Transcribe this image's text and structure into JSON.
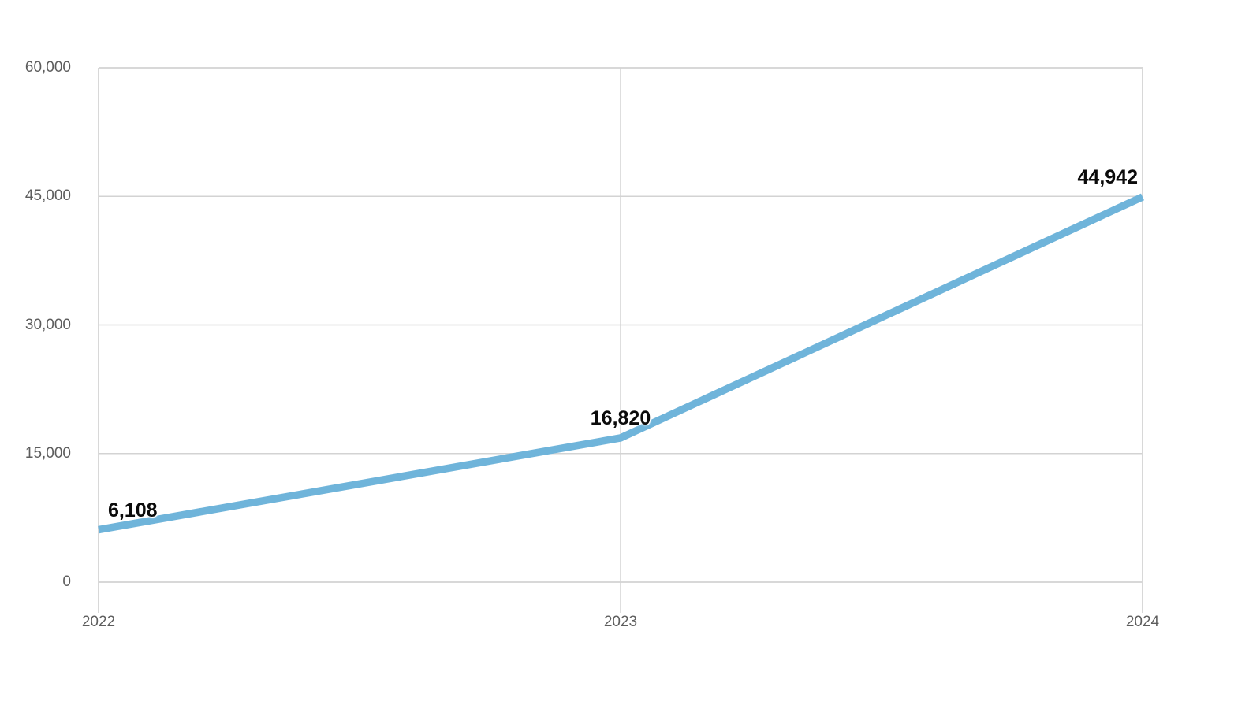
{
  "chart_data": {
    "type": "line",
    "title": "",
    "x": [
      "2022",
      "2023",
      "2024"
    ],
    "values": [
      6108,
      16820,
      44942
    ],
    "data_labels": [
      "6,108",
      "16,820",
      "44,942"
    ],
    "y_ticks": [
      {
        "value": 60000,
        "label": "60,000"
      },
      {
        "value": 45000,
        "label": "45,000"
      },
      {
        "value": 30000,
        "label": "30,000"
      },
      {
        "value": 15000,
        "label": "15,000"
      },
      {
        "value": 0,
        "label": "0"
      }
    ],
    "ylim": [
      0,
      60000
    ],
    "xlabel": "",
    "ylabel": "",
    "grid": true,
    "legend": "none",
    "colors": {
      "line": "#6fb4da",
      "grid_outer": "#d8d8d8",
      "grid_inner": "#d3d3d3",
      "axis_text": "#5d5d5d",
      "data_label": "#0b0b0b",
      "background": "#ffffff"
    }
  }
}
